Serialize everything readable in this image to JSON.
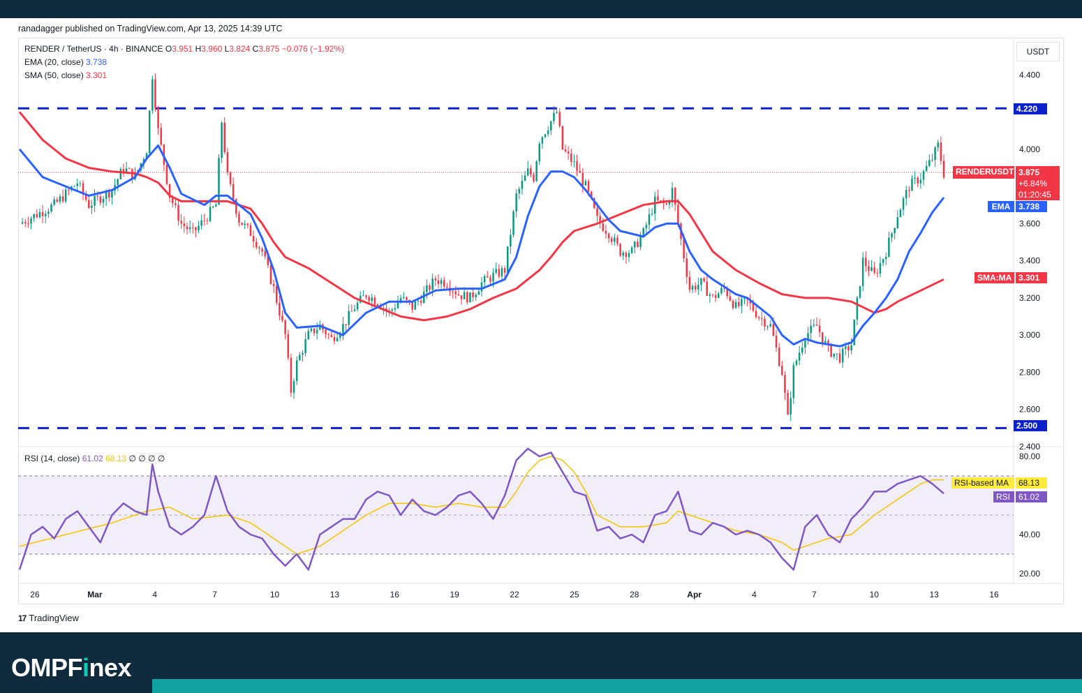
{
  "header": {
    "publisher": "ranadagger published on TradingView.com, Apr 13, 2025 14:39 UTC"
  },
  "legend": {
    "symbol": "RENDER / TetherUS · 4h · BINANCE",
    "o_label": "O",
    "o_value": "3.951",
    "h_label": "H",
    "h_value": "3.960",
    "l_label": "L",
    "l_value": "3.824",
    "c_label": "C",
    "c_value": "3.875",
    "change": "−0.076 (−1.92%)",
    "ema_label": "EMA (20, close)",
    "ema_value": "3.738",
    "sma_label": "SMA (50, close)",
    "sma_value": "3.301",
    "rsi_label": "RSI (14, close)",
    "rsi_value": "61.02",
    "rsi_ma_value": "68.13",
    "rsi_extra": "∅ ∅ ∅ ∅"
  },
  "axis": {
    "currency": "USDT"
  },
  "tags": {
    "resistance": "4.220",
    "support": "2.500",
    "symbol_name": "RENDERUSDT",
    "price": "3.875",
    "pct": "+6.84%",
    "countdown": "01:20:45",
    "ema_name": "EMA",
    "ema": "3.738",
    "sma_name": "SMA:MA",
    "sma": "3.301",
    "rsi_ma_name": "RSI-based MA",
    "rsi_ma": "68.13",
    "rsi_name": "RSI",
    "rsi": "61.02"
  },
  "colors": {
    "up": "#089981",
    "down": "#f23645",
    "ema": "#2962ff",
    "sma": "#f23645",
    "rsi": "#7e57c2",
    "rsi_ma": "#f5c400",
    "level": "#0d21c9",
    "brand_bar": "#0f2b3d",
    "brand_accent": "#12a3a0"
  },
  "brand": {
    "tradingview": "TradingView",
    "site_prefix": "OMPF",
    "site_i": "i",
    "site_suffix": "nex"
  },
  "chart_data": [
    {
      "type": "candlestick",
      "title": "RENDER / TetherUS · 4h · BINANCE",
      "x_ticks": [
        "26",
        "Mar",
        "4",
        "7",
        "10",
        "13",
        "16",
        "19",
        "22",
        "25",
        "28",
        "Apr",
        "4",
        "7",
        "10",
        "13",
        "16"
      ],
      "y_ticks": [
        "4.400",
        "4.000",
        "3.600",
        "3.400",
        "3.200",
        "3.000",
        "2.800",
        "2.600",
        "2.400"
      ],
      "ylim": [
        2.4,
        4.6
      ],
      "horizontal_levels": [
        4.22,
        2.5
      ],
      "last_price": 3.875,
      "price_path": [
        [
          0,
          3.6
        ],
        [
          3,
          3.7
        ],
        [
          5,
          3.82
        ],
        [
          6,
          3.7
        ],
        [
          8,
          3.78
        ],
        [
          9,
          3.9
        ],
        [
          10,
          3.85
        ],
        [
          11,
          4.0
        ],
        [
          11.5,
          4.4
        ],
        [
          12,
          4.1
        ],
        [
          13,
          3.75
        ],
        [
          14,
          3.6
        ],
        [
          15,
          3.55
        ],
        [
          16,
          3.62
        ],
        [
          17,
          3.7
        ],
        [
          17.5,
          4.15
        ],
        [
          18,
          3.85
        ],
        [
          19,
          3.62
        ],
        [
          20,
          3.55
        ],
        [
          21,
          3.45
        ],
        [
          22,
          3.25
        ],
        [
          23,
          3.0
        ],
        [
          23.5,
          2.7
        ],
        [
          24,
          2.85
        ],
        [
          25,
          3.0
        ],
        [
          26,
          3.05
        ],
        [
          27,
          2.98
        ],
        [
          28,
          3.05
        ],
        [
          29,
          3.15
        ],
        [
          30,
          3.22
        ],
        [
          31,
          3.18
        ],
        [
          32,
          3.12
        ],
        [
          33,
          3.2
        ],
        [
          34,
          3.15
        ],
        [
          35,
          3.22
        ],
        [
          36,
          3.3
        ],
        [
          37,
          3.28
        ],
        [
          38,
          3.22
        ],
        [
          39,
          3.2
        ],
        [
          40,
          3.28
        ],
        [
          41,
          3.32
        ],
        [
          42,
          3.35
        ],
        [
          43,
          3.75
        ],
        [
          44,
          3.88
        ],
        [
          44.5,
          3.85
        ],
        [
          45,
          4.05
        ],
        [
          46,
          4.15
        ],
        [
          46.5,
          4.2
        ],
        [
          47,
          4.0
        ],
        [
          48,
          3.92
        ],
        [
          49,
          3.8
        ],
        [
          50,
          3.62
        ],
        [
          51,
          3.55
        ],
        [
          52,
          3.45
        ],
        [
          53,
          3.45
        ],
        [
          54,
          3.55
        ],
        [
          55,
          3.72
        ],
        [
          56,
          3.7
        ],
        [
          56.5,
          3.78
        ],
        [
          57,
          3.6
        ],
        [
          58,
          3.25
        ],
        [
          59,
          3.28
        ],
        [
          60,
          3.2
        ],
        [
          61,
          3.25
        ],
        [
          62,
          3.15
        ],
        [
          63,
          3.18
        ],
        [
          64,
          3.1
        ],
        [
          65,
          3.05
        ],
        [
          66,
          2.8
        ],
        [
          66.5,
          2.55
        ],
        [
          67,
          2.82
        ],
        [
          68,
          3.0
        ],
        [
          69,
          3.05
        ],
        [
          70,
          2.92
        ],
        [
          71,
          2.88
        ],
        [
          72,
          2.95
        ],
        [
          73,
          3.4
        ],
        [
          74,
          3.32
        ],
        [
          75,
          3.45
        ],
        [
          76,
          3.65
        ],
        [
          77,
          3.8
        ],
        [
          78,
          3.85
        ],
        [
          79,
          3.95
        ],
        [
          79.5,
          4.02
        ],
        [
          80,
          3.87
        ]
      ],
      "ema_path": [
        [
          0,
          4.0
        ],
        [
          2,
          3.85
        ],
        [
          4,
          3.8
        ],
        [
          6,
          3.75
        ],
        [
          8,
          3.78
        ],
        [
          10,
          3.85
        ],
        [
          11,
          3.95
        ],
        [
          12,
          4.02
        ],
        [
          13,
          3.9
        ],
        [
          14,
          3.76
        ],
        [
          16,
          3.7
        ],
        [
          17,
          3.75
        ],
        [
          18,
          3.75
        ],
        [
          20,
          3.65
        ],
        [
          21,
          3.52
        ],
        [
          22,
          3.35
        ],
        [
          23,
          3.12
        ],
        [
          24,
          3.04
        ],
        [
          26,
          3.05
        ],
        [
          28,
          3.0
        ],
        [
          30,
          3.12
        ],
        [
          32,
          3.18
        ],
        [
          34,
          3.18
        ],
        [
          36,
          3.24
        ],
        [
          38,
          3.25
        ],
        [
          40,
          3.25
        ],
        [
          42,
          3.3
        ],
        [
          43,
          3.42
        ],
        [
          44,
          3.64
        ],
        [
          45,
          3.8
        ],
        [
          46,
          3.88
        ],
        [
          47,
          3.88
        ],
        [
          48,
          3.85
        ],
        [
          49,
          3.78
        ],
        [
          50,
          3.7
        ],
        [
          51,
          3.62
        ],
        [
          52,
          3.56
        ],
        [
          54,
          3.53
        ],
        [
          55,
          3.58
        ],
        [
          56,
          3.6
        ],
        [
          57,
          3.6
        ],
        [
          58,
          3.45
        ],
        [
          59,
          3.35
        ],
        [
          60,
          3.3
        ],
        [
          62,
          3.22
        ],
        [
          63,
          3.2
        ],
        [
          64,
          3.15
        ],
        [
          65,
          3.1
        ],
        [
          66,
          3.0
        ],
        [
          67,
          2.95
        ],
        [
          68,
          2.98
        ],
        [
          69,
          2.96
        ],
        [
          70,
          2.95
        ],
        [
          71,
          2.94
        ],
        [
          72,
          2.96
        ],
        [
          73,
          3.05
        ],
        [
          74,
          3.12
        ],
        [
          75,
          3.2
        ],
        [
          76,
          3.3
        ],
        [
          77,
          3.45
        ],
        [
          78,
          3.55
        ],
        [
          79,
          3.66
        ],
        [
          80,
          3.74
        ]
      ],
      "sma_path": [
        [
          0,
          4.2
        ],
        [
          2,
          4.05
        ],
        [
          4,
          3.95
        ],
        [
          6,
          3.9
        ],
        [
          8,
          3.88
        ],
        [
          10,
          3.87
        ],
        [
          11,
          3.85
        ],
        [
          12,
          3.82
        ],
        [
          13,
          3.75
        ],
        [
          14,
          3.72
        ],
        [
          16,
          3.72
        ],
        [
          18,
          3.72
        ],
        [
          20,
          3.68
        ],
        [
          21,
          3.6
        ],
        [
          22,
          3.5
        ],
        [
          23,
          3.42
        ],
        [
          25,
          3.36
        ],
        [
          27,
          3.28
        ],
        [
          29,
          3.2
        ],
        [
          31,
          3.15
        ],
        [
          33,
          3.1
        ],
        [
          35,
          3.08
        ],
        [
          37,
          3.1
        ],
        [
          39,
          3.14
        ],
        [
          41,
          3.2
        ],
        [
          43,
          3.25
        ],
        [
          45,
          3.35
        ],
        [
          46,
          3.42
        ],
        [
          47,
          3.5
        ],
        [
          48,
          3.56
        ],
        [
          50,
          3.6
        ],
        [
          52,
          3.65
        ],
        [
          54,
          3.7
        ],
        [
          56,
          3.72
        ],
        [
          57,
          3.72
        ],
        [
          58,
          3.65
        ],
        [
          59,
          3.55
        ],
        [
          60,
          3.45
        ],
        [
          62,
          3.35
        ],
        [
          64,
          3.28
        ],
        [
          66,
          3.22
        ],
        [
          68,
          3.2
        ],
        [
          70,
          3.2
        ],
        [
          72,
          3.18
        ],
        [
          74,
          3.12
        ],
        [
          75,
          3.14
        ],
        [
          76,
          3.18
        ],
        [
          78,
          3.24
        ],
        [
          80,
          3.3
        ]
      ]
    },
    {
      "type": "line",
      "title": "RSI (14, close)",
      "y_ticks": [
        "80.00",
        "40.00",
        "20.00"
      ],
      "ylim": [
        15,
        85
      ],
      "bands": [
        30,
        70
      ],
      "rsi_path": [
        [
          0,
          22
        ],
        [
          1,
          40
        ],
        [
          2,
          44
        ],
        [
          3,
          38
        ],
        [
          4,
          48
        ],
        [
          5,
          52
        ],
        [
          6,
          44
        ],
        [
          7,
          36
        ],
        [
          8,
          50
        ],
        [
          9,
          56
        ],
        [
          10,
          52
        ],
        [
          11,
          50
        ],
        [
          11.5,
          76
        ],
        [
          12,
          62
        ],
        [
          13,
          44
        ],
        [
          14,
          40
        ],
        [
          15,
          44
        ],
        [
          16,
          50
        ],
        [
          17,
          70
        ],
        [
          18,
          52
        ],
        [
          19,
          44
        ],
        [
          20,
          40
        ],
        [
          21,
          38
        ],
        [
          22,
          30
        ],
        [
          23,
          24
        ],
        [
          24,
          30
        ],
        [
          25,
          22
        ],
        [
          26,
          40
        ],
        [
          27,
          44
        ],
        [
          28,
          48
        ],
        [
          29,
          48
        ],
        [
          30,
          58
        ],
        [
          31,
          62
        ],
        [
          32,
          60
        ],
        [
          33,
          50
        ],
        [
          34,
          58
        ],
        [
          35,
          52
        ],
        [
          36,
          50
        ],
        [
          37,
          54
        ],
        [
          38,
          60
        ],
        [
          39,
          62
        ],
        [
          40,
          56
        ],
        [
          41,
          48
        ],
        [
          42,
          60
        ],
        [
          43,
          78
        ],
        [
          44,
          84
        ],
        [
          45,
          80
        ],
        [
          46,
          82
        ],
        [
          47,
          72
        ],
        [
          48,
          62
        ],
        [
          49,
          60
        ],
        [
          50,
          42
        ],
        [
          51,
          44
        ],
        [
          52,
          38
        ],
        [
          53,
          40
        ],
        [
          54,
          36
        ],
        [
          55,
          50
        ],
        [
          56,
          52
        ],
        [
          57,
          62
        ],
        [
          58,
          42
        ],
        [
          59,
          40
        ],
        [
          60,
          46
        ],
        [
          61,
          44
        ],
        [
          62,
          40
        ],
        [
          63,
          42
        ],
        [
          64,
          40
        ],
        [
          65,
          36
        ],
        [
          66,
          28
        ],
        [
          67,
          22
        ],
        [
          68,
          44
        ],
        [
          69,
          50
        ],
        [
          70,
          40
        ],
        [
          71,
          36
        ],
        [
          72,
          48
        ],
        [
          73,
          54
        ],
        [
          74,
          62
        ],
        [
          75,
          62
        ],
        [
          76,
          66
        ],
        [
          77,
          68
        ],
        [
          78,
          70
        ],
        [
          79,
          66
        ],
        [
          80,
          61
        ]
      ],
      "rsi_ma_path": [
        [
          0,
          34
        ],
        [
          4,
          40
        ],
        [
          8,
          46
        ],
        [
          11,
          52
        ],
        [
          13,
          54
        ],
        [
          15,
          48
        ],
        [
          18,
          50
        ],
        [
          20,
          46
        ],
        [
          22,
          38
        ],
        [
          24,
          30
        ],
        [
          26,
          34
        ],
        [
          28,
          42
        ],
        [
          30,
          50
        ],
        [
          32,
          56
        ],
        [
          34,
          56
        ],
        [
          36,
          54
        ],
        [
          38,
          56
        ],
        [
          40,
          54
        ],
        [
          42,
          54
        ],
        [
          43,
          62
        ],
        [
          44,
          72
        ],
        [
          45,
          78
        ],
        [
          46,
          80
        ],
        [
          47,
          78
        ],
        [
          48,
          72
        ],
        [
          49,
          62
        ],
        [
          50,
          50
        ],
        [
          52,
          44
        ],
        [
          54,
          44
        ],
        [
          56,
          46
        ],
        [
          57,
          52
        ],
        [
          58,
          50
        ],
        [
          60,
          46
        ],
        [
          62,
          42
        ],
        [
          64,
          40
        ],
        [
          66,
          36
        ],
        [
          67,
          32
        ],
        [
          68,
          34
        ],
        [
          70,
          38
        ],
        [
          72,
          40
        ],
        [
          74,
          50
        ],
        [
          76,
          58
        ],
        [
          78,
          66
        ],
        [
          79,
          68
        ],
        [
          80,
          68
        ]
      ]
    }
  ]
}
